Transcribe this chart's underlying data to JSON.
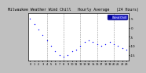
{
  "title": "Milwaukee Weather Wind Chill   Hourly Average   (24 Hours)",
  "hours": [
    0,
    1,
    2,
    3,
    4,
    5,
    6,
    7,
    8,
    9,
    10,
    11,
    12,
    13,
    14,
    15,
    16,
    17,
    18,
    19,
    20,
    21,
    22,
    23
  ],
  "wind_chill": [
    5,
    2,
    -1,
    -4,
    -7,
    -10,
    -13,
    -15,
    -16,
    -15,
    -13,
    -12,
    -10,
    -8,
    -7,
    -8,
    -9,
    -10,
    -9,
    -8,
    -9,
    -10,
    -11,
    -12
  ],
  "dot_color": "#0000ff",
  "bg_color": "#c0c0c0",
  "plot_bg": "#ffffff",
  "legend_face": "#0000cc",
  "legend_edge": "#000088",
  "legend_text_color": "#ffffff",
  "legend_label": "Wind Chill",
  "ylim_min": -18,
  "ylim_max": 8,
  "yticks": [
    -15,
    -10,
    -5,
    0,
    5
  ],
  "ytick_labels": [
    "-15",
    "-10",
    "-5",
    "0",
    "5"
  ],
  "grid_color": "#888888",
  "grid_style": "--",
  "title_color": "#000000",
  "title_fontsize": 3.5,
  "tick_fontsize": 3.0,
  "dot_size": 1.0,
  "border_color": "#000000"
}
